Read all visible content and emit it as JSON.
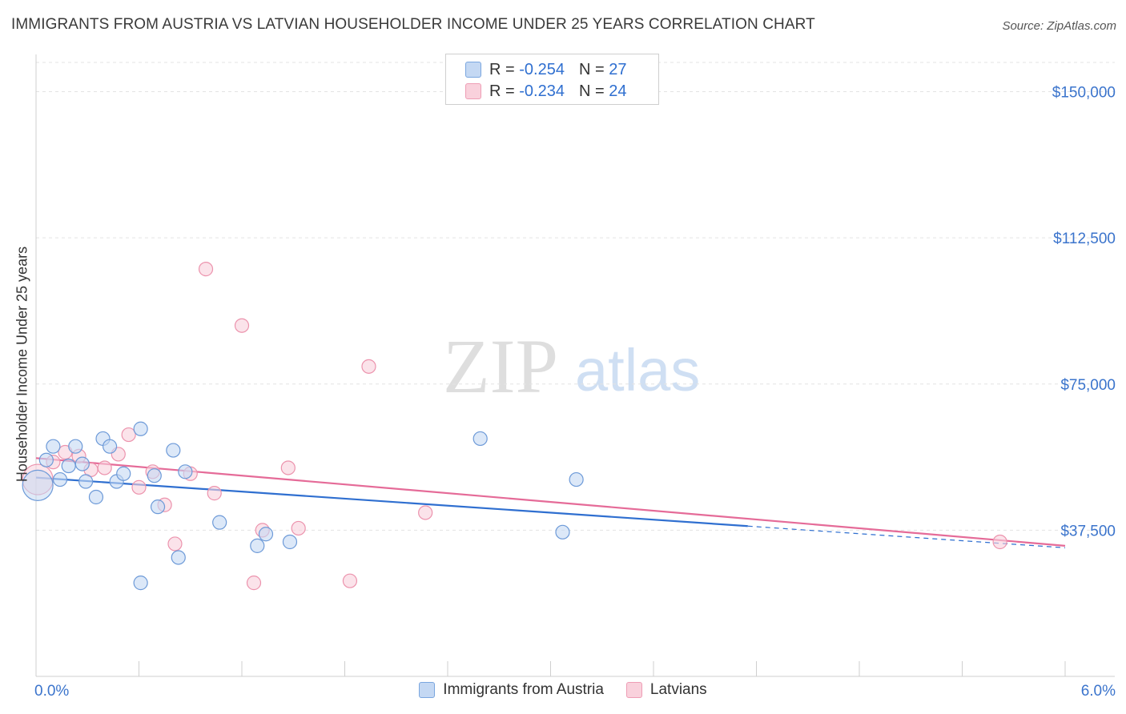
{
  "header": {
    "title": "IMMIGRANTS FROM AUSTRIA VS LATVIAN HOUSEHOLDER INCOME UNDER 25 YEARS CORRELATION CHART",
    "source": "Source: ZipAtlas.com"
  },
  "watermark": {
    "zip": "ZIP",
    "atlas": "atlas"
  },
  "legend_top": {
    "rows": [
      {
        "r_label": "R =",
        "r_value": "-0.254",
        "n_label": "N =",
        "n_value": "27"
      },
      {
        "r_label": "R =",
        "r_value": "-0.234",
        "n_label": "N =",
        "n_value": "24"
      }
    ]
  },
  "chart_data": {
    "type": "scatter",
    "title": "IMMIGRANTS FROM AUSTRIA VS LATVIAN HOUSEHOLDER INCOME UNDER 25 YEARS CORRELATION CHART",
    "xlabel": "",
    "ylabel": "Householder Income Under 25 years",
    "xlim": [
      0,
      6
    ],
    "ylim": [
      0,
      157500
    ],
    "x_tick_labels": [
      "0.0%",
      "6.0%"
    ],
    "y_ticks": [
      {
        "value": 37500,
        "label": "$37,500"
      },
      {
        "value": 75000,
        "label": "$75,000"
      },
      {
        "value": 112500,
        "label": "$112,500"
      },
      {
        "value": 150000,
        "label": "$150,000"
      }
    ],
    "colors": {
      "blue_fill": "#c4d8f3",
      "blue_stroke": "#6d9ad8",
      "blue_line": "#2f6fd0",
      "pink_fill": "#f9d1dc",
      "pink_stroke": "#ec93ad",
      "pink_line": "#e56b98",
      "axis_label": "#3b74cc"
    },
    "series": [
      {
        "name": "Immigrants from Austria",
        "color": "#2f6fd0",
        "r": -0.254,
        "n": 27,
        "trend": {
          "x0": 0.0,
          "y0": 51000,
          "x1": 6.0,
          "y1": 33000,
          "solid_to_x": 4.15
        },
        "points": [
          {
            "x": 0.01,
            "y": 49000,
            "big": true
          },
          {
            "x": 0.06,
            "y": 55500
          },
          {
            "x": 0.1,
            "y": 59000
          },
          {
            "x": 0.14,
            "y": 50500
          },
          {
            "x": 0.19,
            "y": 54000
          },
          {
            "x": 0.23,
            "y": 59000
          },
          {
            "x": 0.27,
            "y": 54500
          },
          {
            "x": 0.29,
            "y": 50000
          },
          {
            "x": 0.35,
            "y": 46000
          },
          {
            "x": 0.39,
            "y": 61000
          },
          {
            "x": 0.43,
            "y": 59000
          },
          {
            "x": 0.47,
            "y": 50000
          },
          {
            "x": 0.51,
            "y": 52000
          },
          {
            "x": 0.61,
            "y": 63500
          },
          {
            "x": 0.69,
            "y": 51500
          },
          {
            "x": 0.71,
            "y": 43500
          },
          {
            "x": 0.8,
            "y": 58000
          },
          {
            "x": 0.87,
            "y": 52500
          },
          {
            "x": 0.83,
            "y": 30500
          },
          {
            "x": 0.61,
            "y": 24000
          },
          {
            "x": 1.07,
            "y": 39500
          },
          {
            "x": 1.29,
            "y": 33500
          },
          {
            "x": 1.34,
            "y": 36500
          },
          {
            "x": 1.48,
            "y": 34500
          },
          {
            "x": 2.59,
            "y": 61000
          },
          {
            "x": 3.07,
            "y": 37000
          },
          {
            "x": 3.15,
            "y": 50500
          }
        ]
      },
      {
        "name": "Latvians",
        "color": "#e56b98",
        "r": -0.234,
        "n": 24,
        "trend": {
          "x0": 0.0,
          "y0": 56000,
          "x1": 6.0,
          "y1": 33500
        },
        "points": [
          {
            "x": 0.01,
            "y": 50500,
            "big": true
          },
          {
            "x": 0.1,
            "y": 55000
          },
          {
            "x": 0.17,
            "y": 57500
          },
          {
            "x": 0.25,
            "y": 56500
          },
          {
            "x": 0.32,
            "y": 53000
          },
          {
            "x": 0.4,
            "y": 53500
          },
          {
            "x": 0.48,
            "y": 57000
          },
          {
            "x": 0.54,
            "y": 62000
          },
          {
            "x": 0.6,
            "y": 48500
          },
          {
            "x": 0.68,
            "y": 52500
          },
          {
            "x": 0.75,
            "y": 44000
          },
          {
            "x": 0.81,
            "y": 34000
          },
          {
            "x": 0.9,
            "y": 52000
          },
          {
            "x": 0.99,
            "y": 104500
          },
          {
            "x": 1.04,
            "y": 47000
          },
          {
            "x": 1.2,
            "y": 90000
          },
          {
            "x": 1.27,
            "y": 24000
          },
          {
            "x": 1.32,
            "y": 37500
          },
          {
            "x": 1.47,
            "y": 53500
          },
          {
            "x": 1.53,
            "y": 38000
          },
          {
            "x": 1.83,
            "y": 24500
          },
          {
            "x": 1.94,
            "y": 79500
          },
          {
            "x": 2.27,
            "y": 42000
          },
          {
            "x": 5.62,
            "y": 34500
          }
        ]
      }
    ]
  }
}
